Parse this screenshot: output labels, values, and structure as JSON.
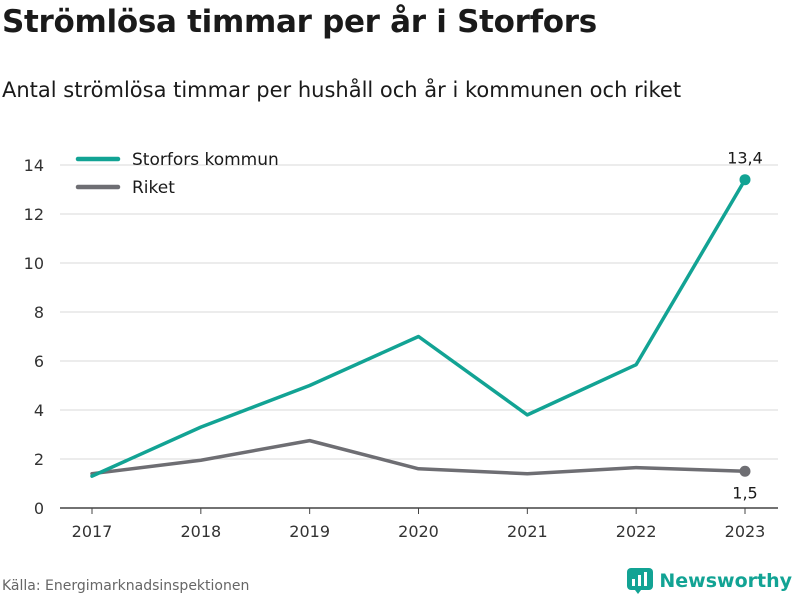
{
  "title": "Strömlösa timmar per år i Storfors",
  "subtitle": "Antal strömlösa timmar per hushåll och år i kommunen och riket",
  "source": "Källa: Energimarknadsinspektionen",
  "brand": {
    "name": "Newsworthy",
    "icon": "newsworthy-logo-icon"
  },
  "colors": {
    "storfors": "#12a394",
    "riket": "#6e6e73",
    "grid": "#d8d8d8"
  },
  "chart_data": {
    "type": "line",
    "x": [
      "2017",
      "2018",
      "2019",
      "2020",
      "2021",
      "2022",
      "2023"
    ],
    "ylim": [
      0,
      14
    ],
    "yticks": [
      0,
      2,
      4,
      6,
      8,
      10,
      12,
      14
    ],
    "grid": true,
    "legend": "top-left",
    "series": [
      {
        "name": "Storfors kommun",
        "color": "#12a394",
        "values": [
          1.3,
          3.3,
          5.0,
          7.0,
          3.8,
          5.85,
          13.4
        ],
        "end_label": "13,4"
      },
      {
        "name": "Riket",
        "color": "#6e6e73",
        "values": [
          1.4,
          1.95,
          2.75,
          1.6,
          1.4,
          1.65,
          1.5
        ],
        "end_label": "1,5"
      }
    ]
  }
}
